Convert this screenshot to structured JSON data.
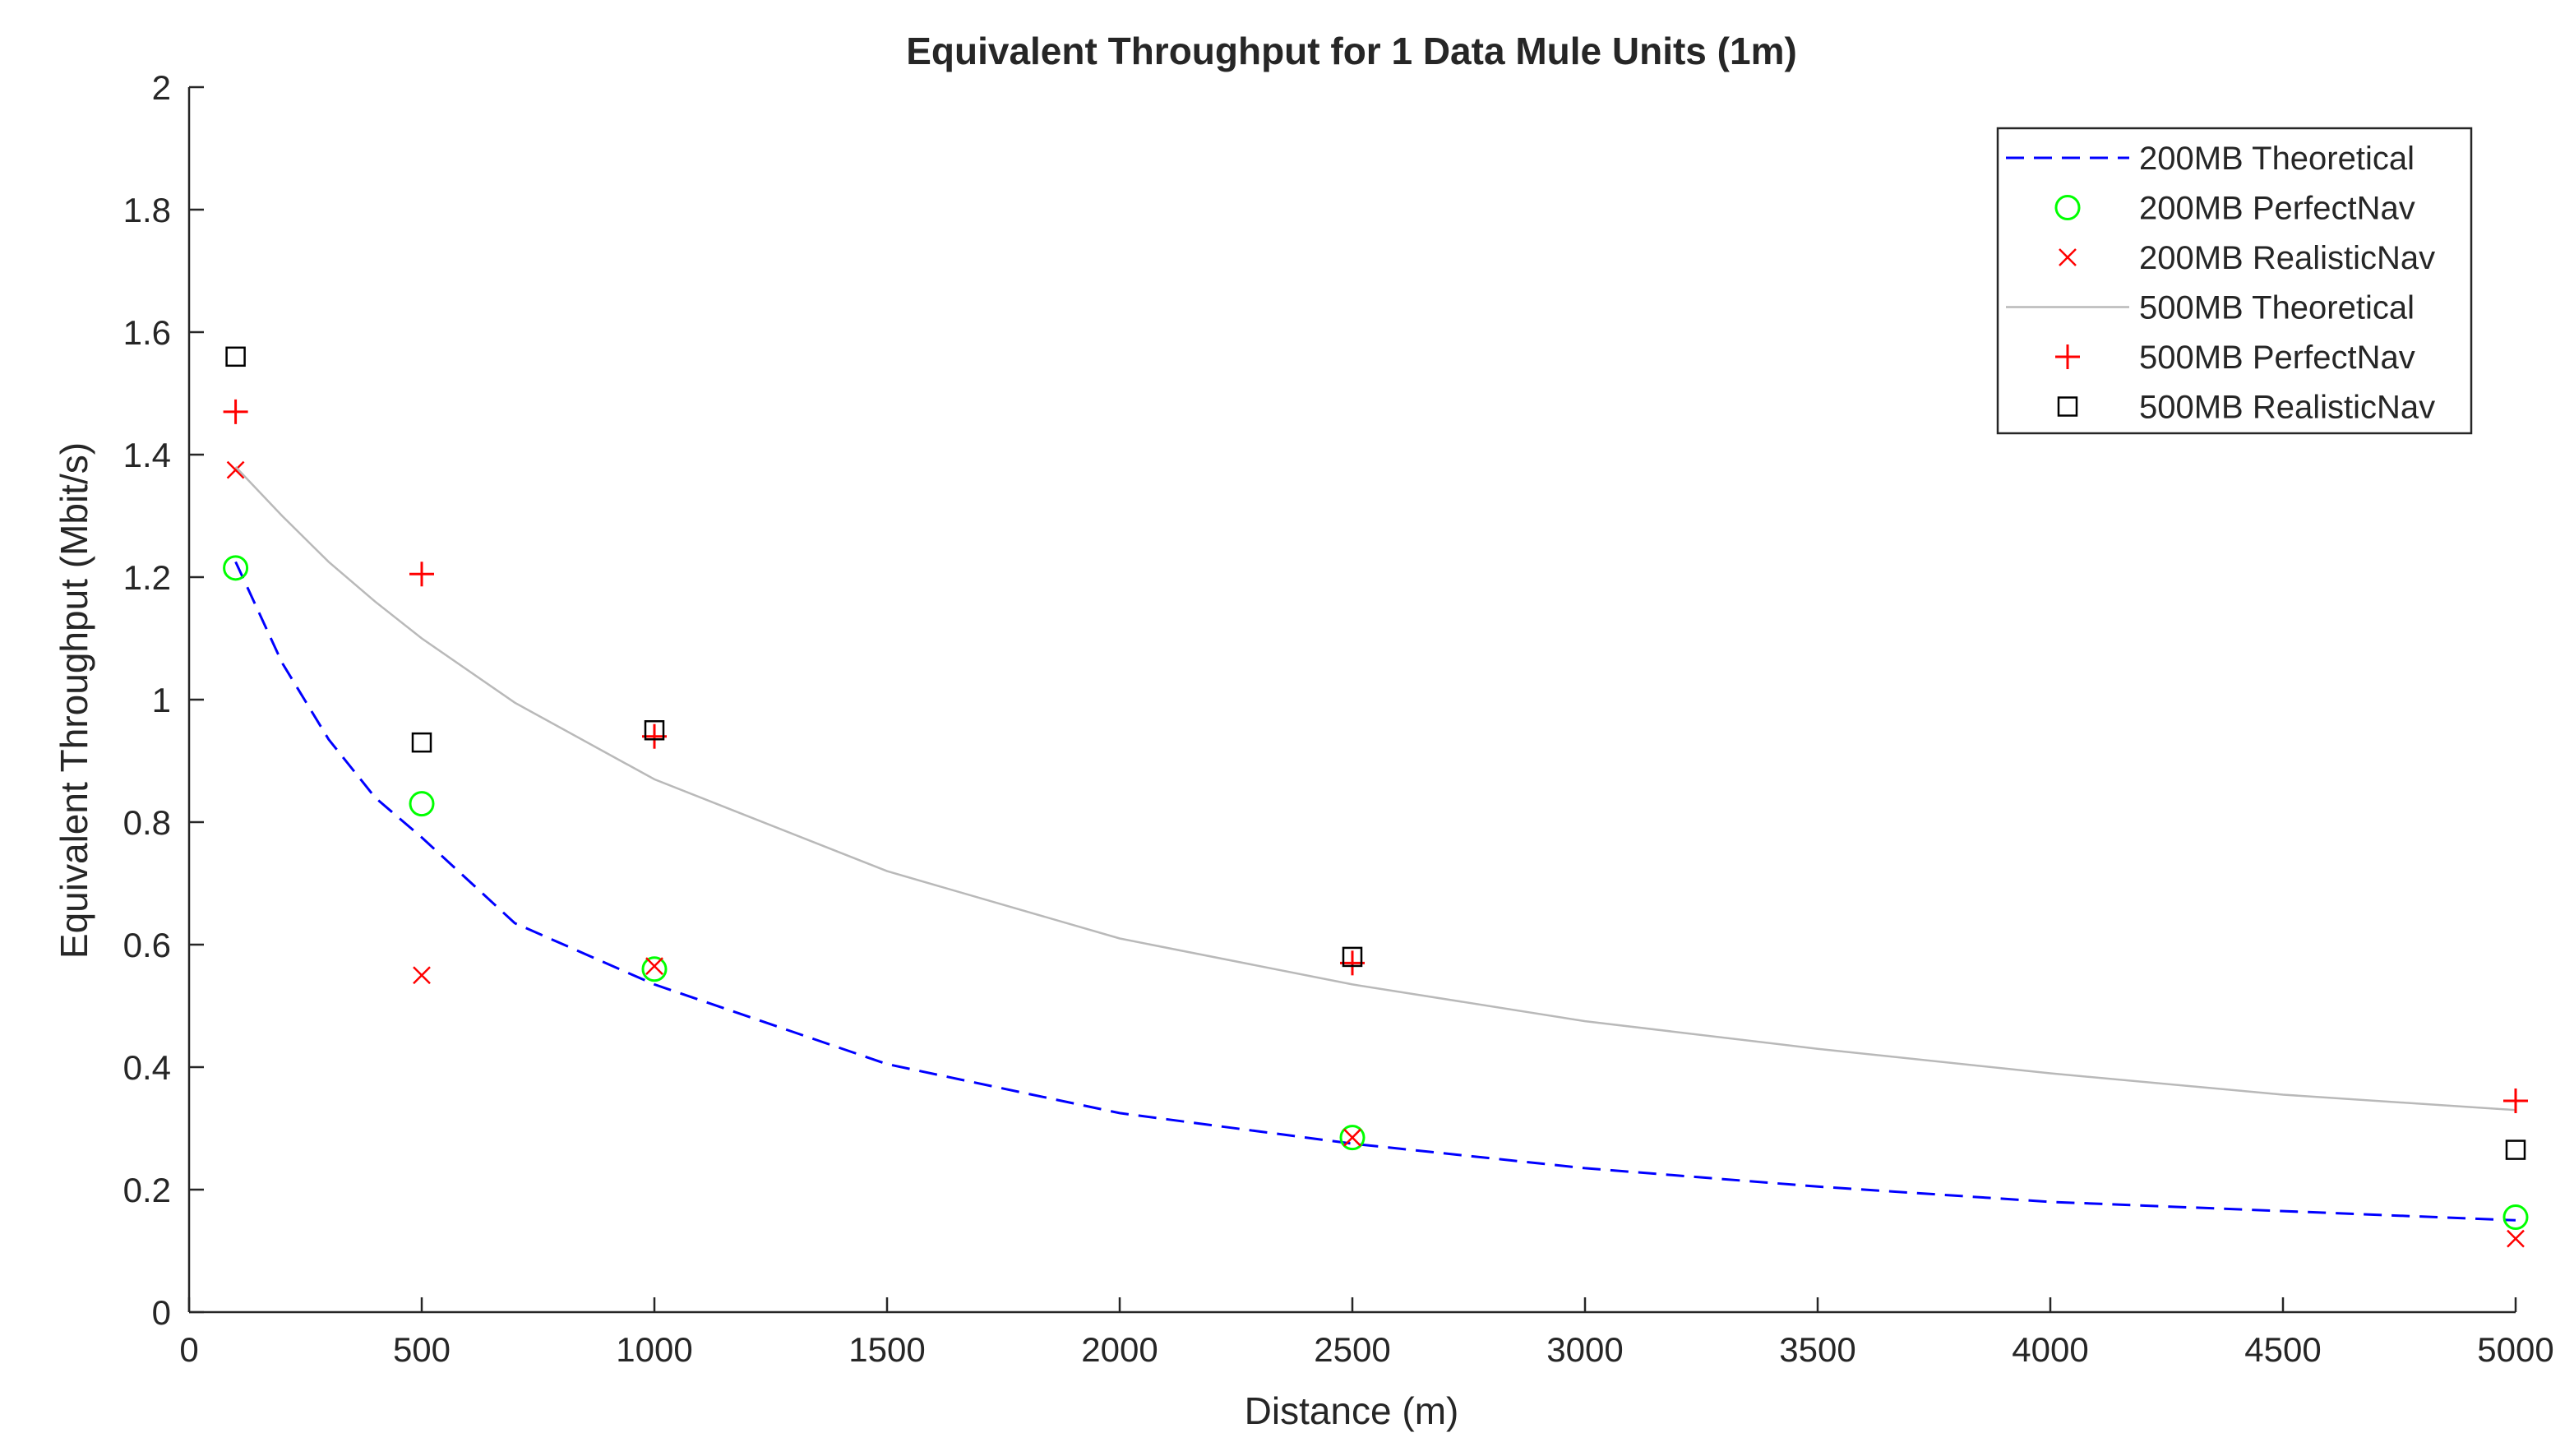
{
  "chart_data": {
    "type": "scatter",
    "title": "Equivalent Throughput for 1 Data Mule Units (1m)",
    "xlabel": "Distance (m)",
    "ylabel": "Equivalent Throughput (Mbit/s)",
    "xlim": [
      0,
      5000
    ],
    "ylim": [
      0,
      2
    ],
    "xticks": [
      0,
      500,
      1000,
      1500,
      2000,
      2500,
      3000,
      3500,
      4000,
      4500,
      5000
    ],
    "yticks": [
      0,
      0.2,
      0.4,
      0.6,
      0.8,
      1,
      1.2,
      1.4,
      1.6,
      1.8,
      2
    ],
    "xtick_labels": [
      "0",
      "500",
      "1000",
      "1500",
      "2000",
      "2500",
      "3000",
      "3500",
      "4000",
      "4500",
      "5000"
    ],
    "ytick_labels": [
      "0",
      "0.2",
      "0.4",
      "0.6",
      "0.8",
      "1",
      "1.2",
      "1.4",
      "1.6",
      "1.8",
      "2"
    ],
    "grid": false,
    "legend_position": "top-right",
    "series": [
      {
        "name": "200MB Theoretical",
        "kind": "line",
        "style": "dashed",
        "color": "#0000ff",
        "x": [
          100,
          200,
          300,
          400,
          500,
          700,
          1000,
          1500,
          2000,
          2500,
          3000,
          3500,
          4000,
          4500,
          5000
        ],
        "y": [
          1.225,
          1.06,
          0.935,
          0.84,
          0.775,
          0.635,
          0.535,
          0.405,
          0.325,
          0.275,
          0.235,
          0.205,
          0.18,
          0.165,
          0.15
        ]
      },
      {
        "name": "200MB PerfectNav",
        "kind": "scatter",
        "marker": "circle",
        "color": "#00ff00",
        "x": [
          100,
          500,
          1000,
          2500,
          5000
        ],
        "y": [
          1.215,
          0.83,
          0.56,
          0.285,
          0.155
        ]
      },
      {
        "name": "200MB RealisticNav",
        "kind": "scatter",
        "marker": "x",
        "color": "#ff0000",
        "x": [
          100,
          500,
          1000,
          2500,
          5000
        ],
        "y": [
          1.375,
          0.55,
          0.565,
          0.285,
          0.12
        ]
      },
      {
        "name": "500MB Theoretical",
        "kind": "line",
        "style": "solid",
        "color": "#b9b9b9",
        "x": [
          100,
          200,
          300,
          400,
          500,
          700,
          1000,
          1500,
          2000,
          2500,
          3000,
          3500,
          4000,
          4500,
          5000
        ],
        "y": [
          1.38,
          1.3,
          1.225,
          1.16,
          1.1,
          0.995,
          0.87,
          0.72,
          0.61,
          0.535,
          0.475,
          0.43,
          0.39,
          0.355,
          0.33
        ]
      },
      {
        "name": "500MB PerfectNav",
        "kind": "scatter",
        "marker": "plus",
        "color": "#ff0000",
        "x": [
          100,
          500,
          1000,
          2500,
          5000
        ],
        "y": [
          1.47,
          1.205,
          0.94,
          0.57,
          0.345
        ]
      },
      {
        "name": "500MB RealisticNav",
        "kind": "scatter",
        "marker": "square",
        "color": "#000000",
        "x": [
          100,
          500,
          1000,
          2500,
          5000
        ],
        "y": [
          1.56,
          0.93,
          0.95,
          0.58,
          0.265
        ]
      }
    ]
  }
}
